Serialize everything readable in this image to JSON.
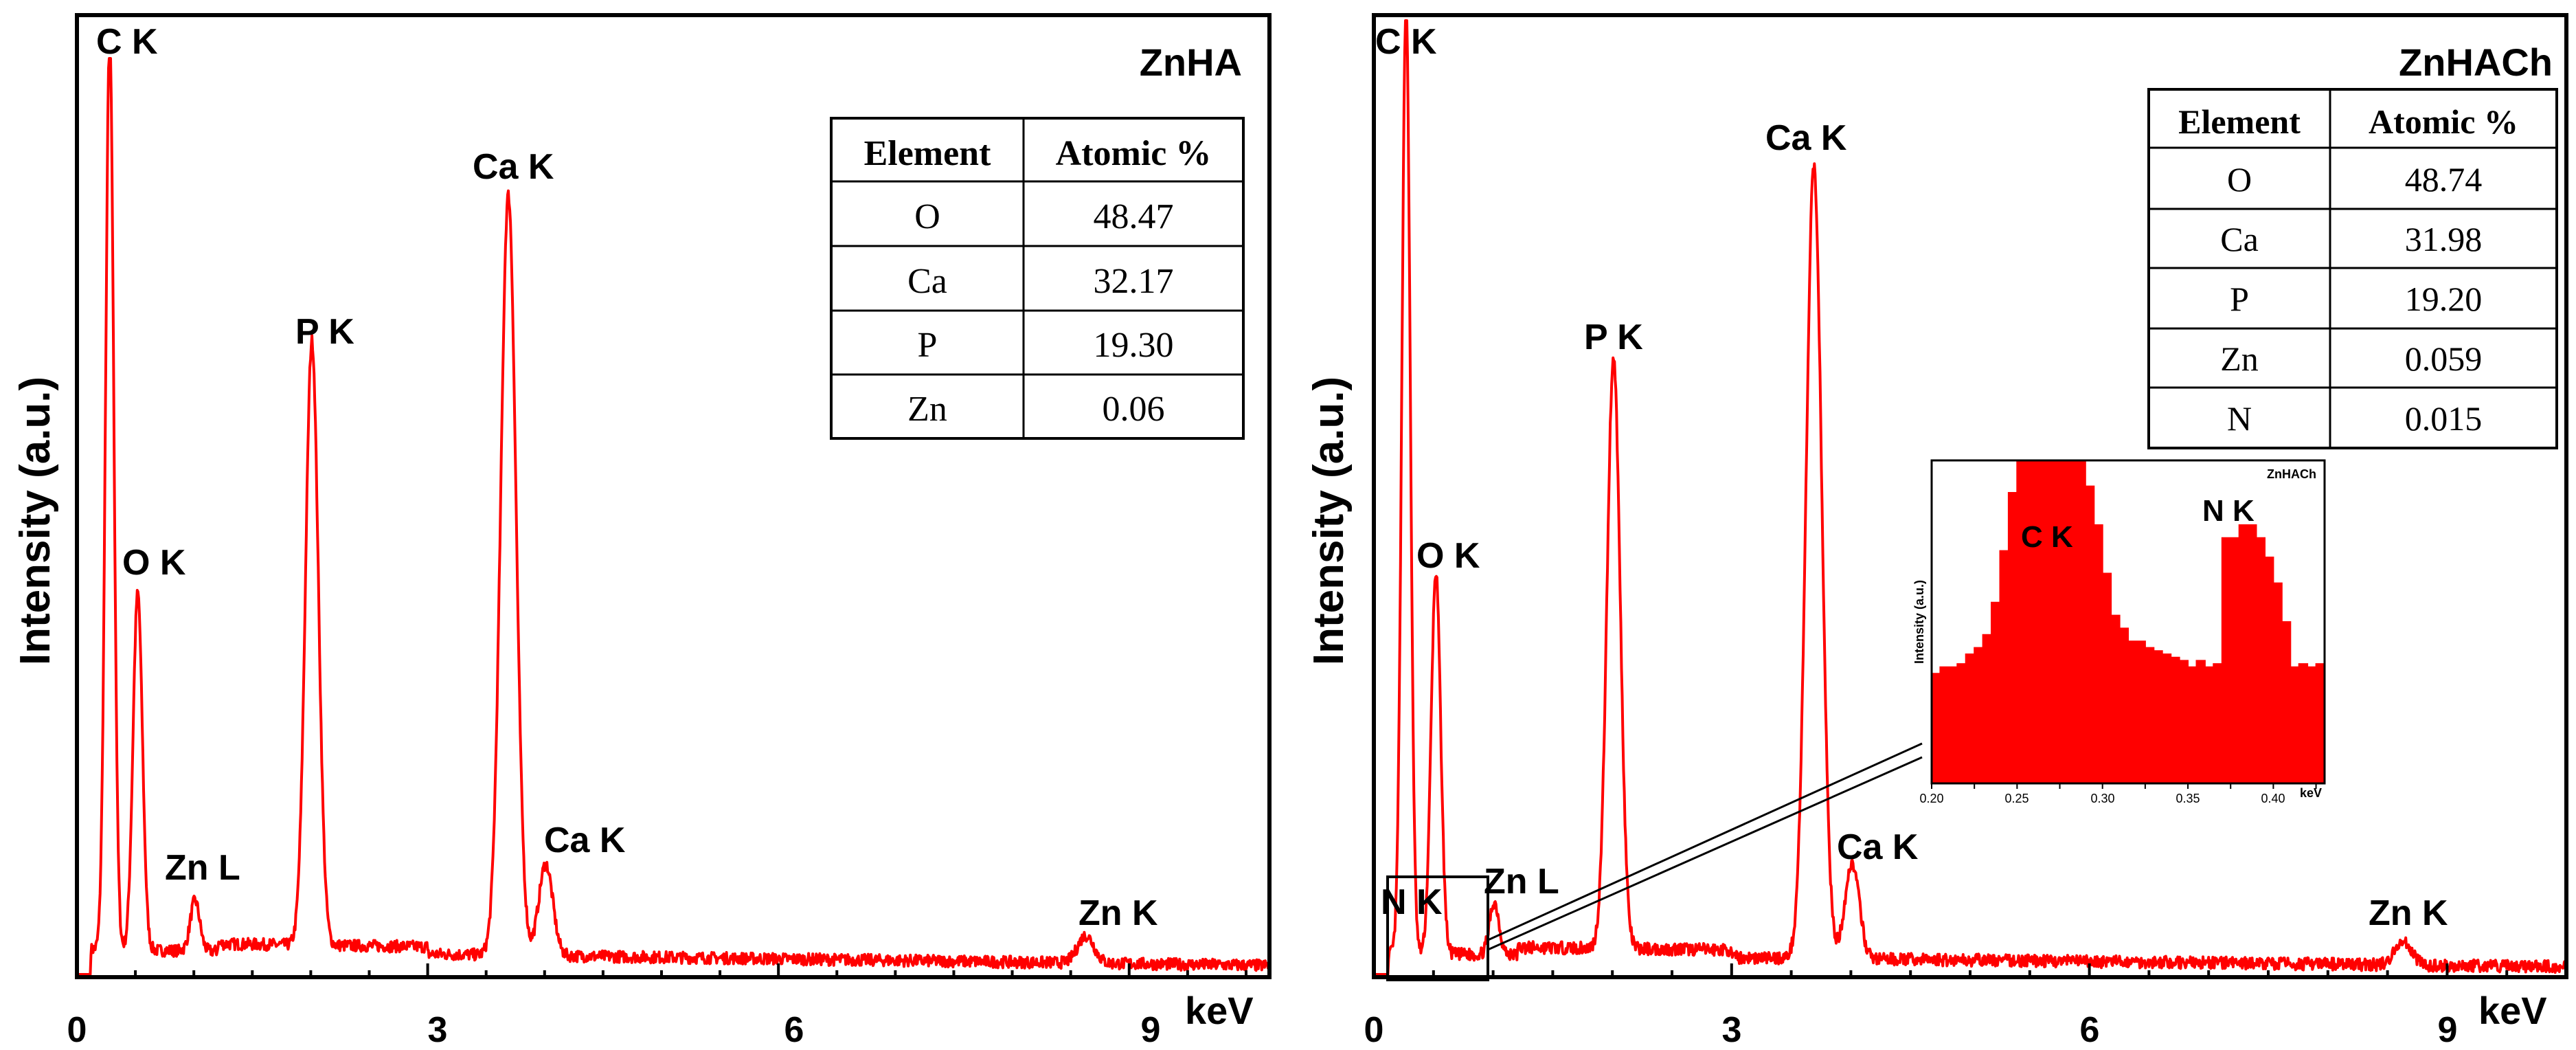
{
  "colors": {
    "spectrum": "#ff0000",
    "axis": "#000000",
    "background": "#ffffff"
  },
  "chart_data": [
    {
      "type": "line",
      "title": "ZnHA",
      "xlabel": "keV",
      "ylabel": "Intensity (a.u.)",
      "xlim": [
        0,
        10.2
      ],
      "ylim": [
        0,
        100
      ],
      "x_ticks": [
        "0",
        "3",
        "6",
        "9"
      ],
      "baseline": 2.5,
      "peaks": [
        {
          "label": "C K",
          "x": 0.28,
          "height": 100,
          "width": 0.035
        },
        {
          "label": "O K",
          "x": 0.52,
          "height": 39,
          "width": 0.04
        },
        {
          "label": "Zn L",
          "x": 1.01,
          "height": 5.5,
          "width": 0.04
        },
        {
          "label": "P K",
          "x": 2.01,
          "height": 66,
          "width": 0.055
        },
        {
          "label": "Ca K",
          "x": 3.69,
          "height": 83,
          "width": 0.065
        },
        {
          "label": "Ca K",
          "x": 4.01,
          "height": 10,
          "width": 0.06
        },
        {
          "label": "Zn K",
          "x": 8.63,
          "height": 3.0,
          "width": 0.07
        }
      ],
      "table": {
        "headers": [
          "Element",
          "Atomic %"
        ],
        "rows": [
          [
            "O",
            "48.47"
          ],
          [
            "Ca",
            "32.17"
          ],
          [
            "P",
            "19.30"
          ],
          [
            "Zn",
            "0.06"
          ]
        ]
      }
    },
    {
      "type": "line",
      "title": "ZnHACh",
      "xlabel": "keV",
      "ylabel": "Intensity (a.u.)",
      "xlim": [
        0,
        10.0
      ],
      "ylim": [
        0,
        100
      ],
      "x_ticks": [
        "0",
        "3",
        "6",
        "9"
      ],
      "baseline": 2.0,
      "peaks": [
        {
          "label": "C K",
          "x": 0.27,
          "height": 100,
          "width": 0.035
        },
        {
          "label": "O K",
          "x": 0.52,
          "height": 40,
          "width": 0.04
        },
        {
          "label": "Zn L",
          "x": 1.01,
          "height": 5.5,
          "width": 0.04
        },
        {
          "label": "P K",
          "x": 2.01,
          "height": 62,
          "width": 0.055
        },
        {
          "label": "Ca K",
          "x": 3.69,
          "height": 83,
          "width": 0.065
        },
        {
          "label": "Ca K",
          "x": 4.01,
          "height": 10,
          "width": 0.06
        },
        {
          "label": "Zn K",
          "x": 8.63,
          "height": 2.5,
          "width": 0.07
        }
      ],
      "extra_labels": [
        "N K"
      ],
      "table": {
        "headers": [
          "Element",
          "Atomic %"
        ],
        "rows": [
          [
            "O",
            "48.74"
          ],
          [
            "Ca",
            "31.98"
          ],
          [
            "P",
            "19.20"
          ],
          [
            "Zn",
            "0.059"
          ],
          [
            "N",
            "0.015"
          ]
        ]
      },
      "inset": {
        "title": "ZnHACh",
        "xlabel": "keV",
        "ylabel": "Intensity (a.u.)",
        "xlim": [
          0.2,
          0.43
        ],
        "ylim": [
          0,
          100
        ],
        "x_ticks": [
          "0.20",
          "0.25",
          "0.30",
          "0.35",
          "0.40"
        ],
        "peak_labels": [
          "C K",
          "N K"
        ],
        "x": [
          0.2,
          0.205,
          0.21,
          0.215,
          0.22,
          0.225,
          0.23,
          0.235,
          0.24,
          0.245,
          0.25,
          0.255,
          0.26,
          0.265,
          0.27,
          0.275,
          0.28,
          0.285,
          0.29,
          0.295,
          0.3,
          0.305,
          0.31,
          0.315,
          0.32,
          0.325,
          0.33,
          0.335,
          0.34,
          0.345,
          0.35,
          0.355,
          0.36,
          0.365,
          0.37,
          0.375,
          0.38,
          0.385,
          0.39,
          0.395,
          0.4,
          0.405,
          0.41,
          0.415,
          0.42,
          0.425,
          0.43
        ],
        "y": [
          34,
          36,
          36,
          37,
          40,
          42,
          46,
          56,
          72,
          90,
          100,
          100,
          100,
          100,
          100,
          100,
          100,
          100,
          92,
          80,
          65,
          52,
          48,
          44,
          44,
          42,
          41,
          40,
          39,
          38,
          36,
          38,
          36,
          37,
          76,
          76,
          80,
          80,
          76,
          70,
          62,
          50,
          36,
          37,
          36,
          37,
          36
        ]
      }
    }
  ]
}
